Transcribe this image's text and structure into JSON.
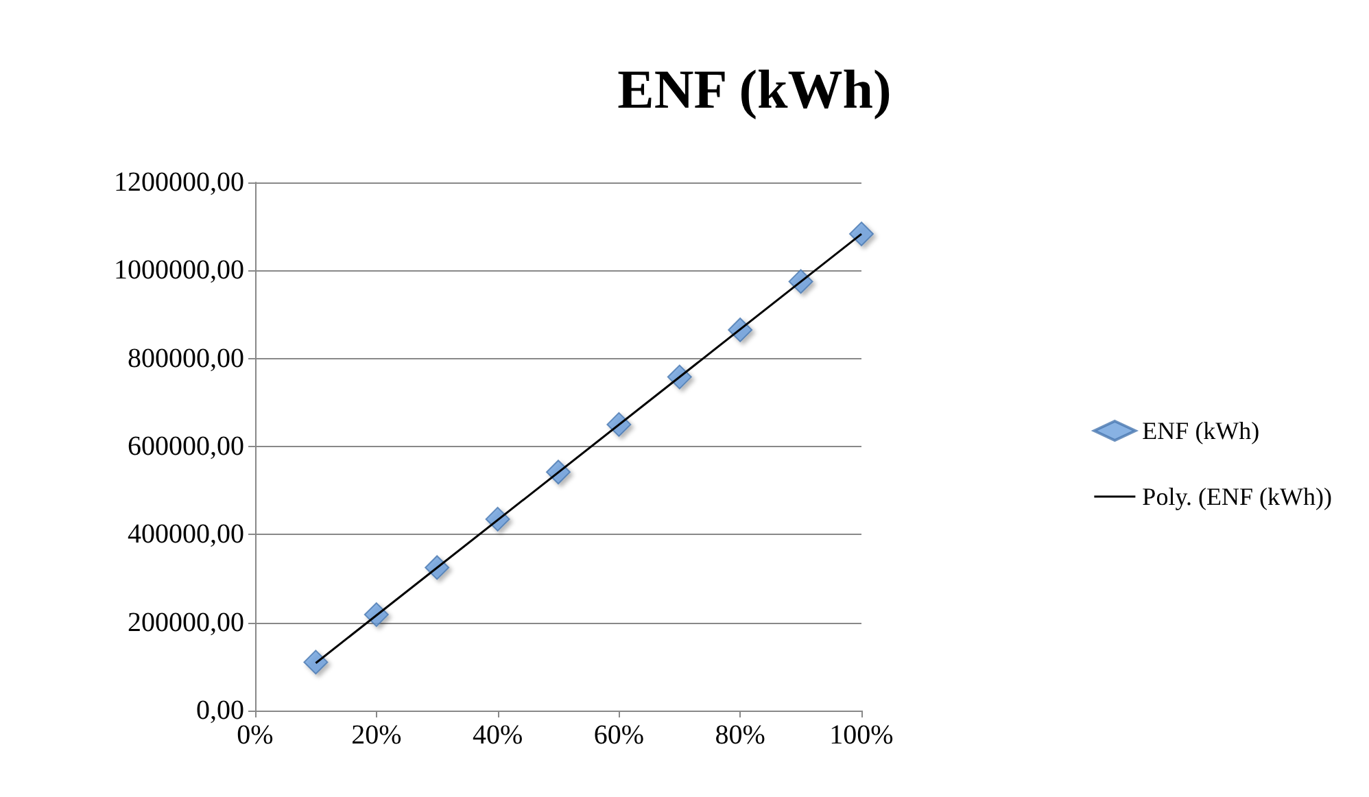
{
  "chart_data": {
    "type": "scatter",
    "title": "ENF (kWh)",
    "x": [
      10,
      20,
      30,
      40,
      50,
      60,
      70,
      80,
      90,
      100
    ],
    "series": [
      {
        "name": "ENF (kWh)",
        "color": "#6a9fdc",
        "values": [
          110000,
          218000,
          325000,
          435000,
          542000,
          650000,
          758000,
          865000,
          975000,
          1083000
        ]
      },
      {
        "name": "Poly. (ENF (kWh))",
        "type": "line",
        "color": "#000000",
        "x": [
          10,
          100
        ],
        "values": [
          108000,
          1083000
        ],
        "marker": "none"
      }
    ],
    "xlim": [
      0,
      100
    ],
    "xticks": [
      {
        "value": 0,
        "label": "0%"
      },
      {
        "value": 20,
        "label": "20%"
      },
      {
        "value": 40,
        "label": "40%"
      },
      {
        "value": 60,
        "label": "60%"
      },
      {
        "value": 80,
        "label": "80%"
      },
      {
        "value": 100,
        "label": "100%"
      }
    ],
    "ylim": [
      0,
      1200000
    ],
    "yticks": [
      {
        "value": 0,
        "label": "0,00"
      },
      {
        "value": 200000,
        "label": "200000,00"
      },
      {
        "value": 400000,
        "label": "400000,00"
      },
      {
        "value": 600000,
        "label": "600000,00"
      },
      {
        "value": 800000,
        "label": "800000,00"
      },
      {
        "value": 1000000,
        "label": "1000000,00"
      },
      {
        "value": 1200000,
        "label": "1200000,00"
      }
    ],
    "grid": "y",
    "legend": "right",
    "marker": "diamond"
  }
}
